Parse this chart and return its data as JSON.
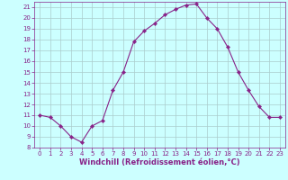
{
  "x": [
    0,
    1,
    2,
    3,
    4,
    5,
    6,
    7,
    8,
    9,
    10,
    11,
    12,
    13,
    14,
    15,
    16,
    17,
    18,
    19,
    20,
    21,
    22,
    23
  ],
  "y": [
    11,
    10.8,
    10,
    9,
    8.5,
    10,
    10.5,
    13.3,
    15,
    17.8,
    18.8,
    19.5,
    20.3,
    20.8,
    21.2,
    21.3,
    20,
    19,
    17.3,
    15,
    13.3,
    11.8,
    10.8,
    10.8
  ],
  "line_color": "#882288",
  "marker": "D",
  "marker_size": 2.2,
  "bg_color": "#ccffff",
  "grid_color": "#aacccc",
  "xlabel": "Windchill (Refroidissement éolien,°C)",
  "xlim": [
    -0.5,
    23.5
  ],
  "ylim": [
    8,
    21.5
  ],
  "yticks": [
    8,
    9,
    10,
    11,
    12,
    13,
    14,
    15,
    16,
    17,
    18,
    19,
    20,
    21
  ],
  "xticks": [
    0,
    1,
    2,
    3,
    4,
    5,
    6,
    7,
    8,
    9,
    10,
    11,
    12,
    13,
    14,
    15,
    16,
    17,
    18,
    19,
    20,
    21,
    22,
    23
  ],
  "tick_color": "#882288",
  "tick_fontsize": 5.0,
  "xlabel_fontsize": 6.0,
  "line_width": 0.8
}
